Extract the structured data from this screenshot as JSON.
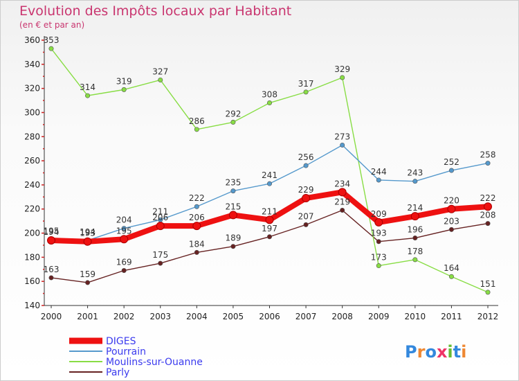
{
  "title": "Evolution des Impôts locaux par Habitant",
  "subtitle": "(en € et par an)",
  "logo_text": "Proxiti",
  "chart_data": {
    "type": "line",
    "title": "Evolution des Impôts locaux par Habitant",
    "subtitle": "(en € et par an)",
    "x": [
      "2000",
      "2001",
      "2002",
      "2003",
      "2004",
      "2005",
      "2006",
      "2007",
      "2008",
      "2009",
      "2010",
      "2011",
      "2012"
    ],
    "yticks": [
      140,
      160,
      180,
      200,
      220,
      240,
      260,
      280,
      300,
      320,
      340,
      360
    ],
    "ylim": [
      140,
      360
    ],
    "grid": false,
    "legend_position": "bottom-left",
    "series": [
      {
        "name": "DIGES",
        "color": "#ee1111",
        "values": [
          194,
          193,
          195,
          206,
          206,
          215,
          211,
          229,
          234,
          209,
          214,
          220,
          222
        ]
      },
      {
        "name": "Pourrain",
        "color": "#5599cc",
        "values": [
          195,
          194,
          204,
          211,
          222,
          235,
          241,
          256,
          273,
          244,
          243,
          252,
          258
        ]
      },
      {
        "name": "Moulins-sur-Ouanne",
        "color": "#88dd44",
        "values": [
          353,
          314,
          319,
          327,
          286,
          292,
          308,
          317,
          329,
          173,
          178,
          164,
          151
        ]
      },
      {
        "name": "Parly",
        "color": "#662222",
        "values": [
          163,
          159,
          169,
          175,
          184,
          189,
          197,
          207,
          219,
          193,
          196,
          203,
          208
        ]
      }
    ]
  }
}
